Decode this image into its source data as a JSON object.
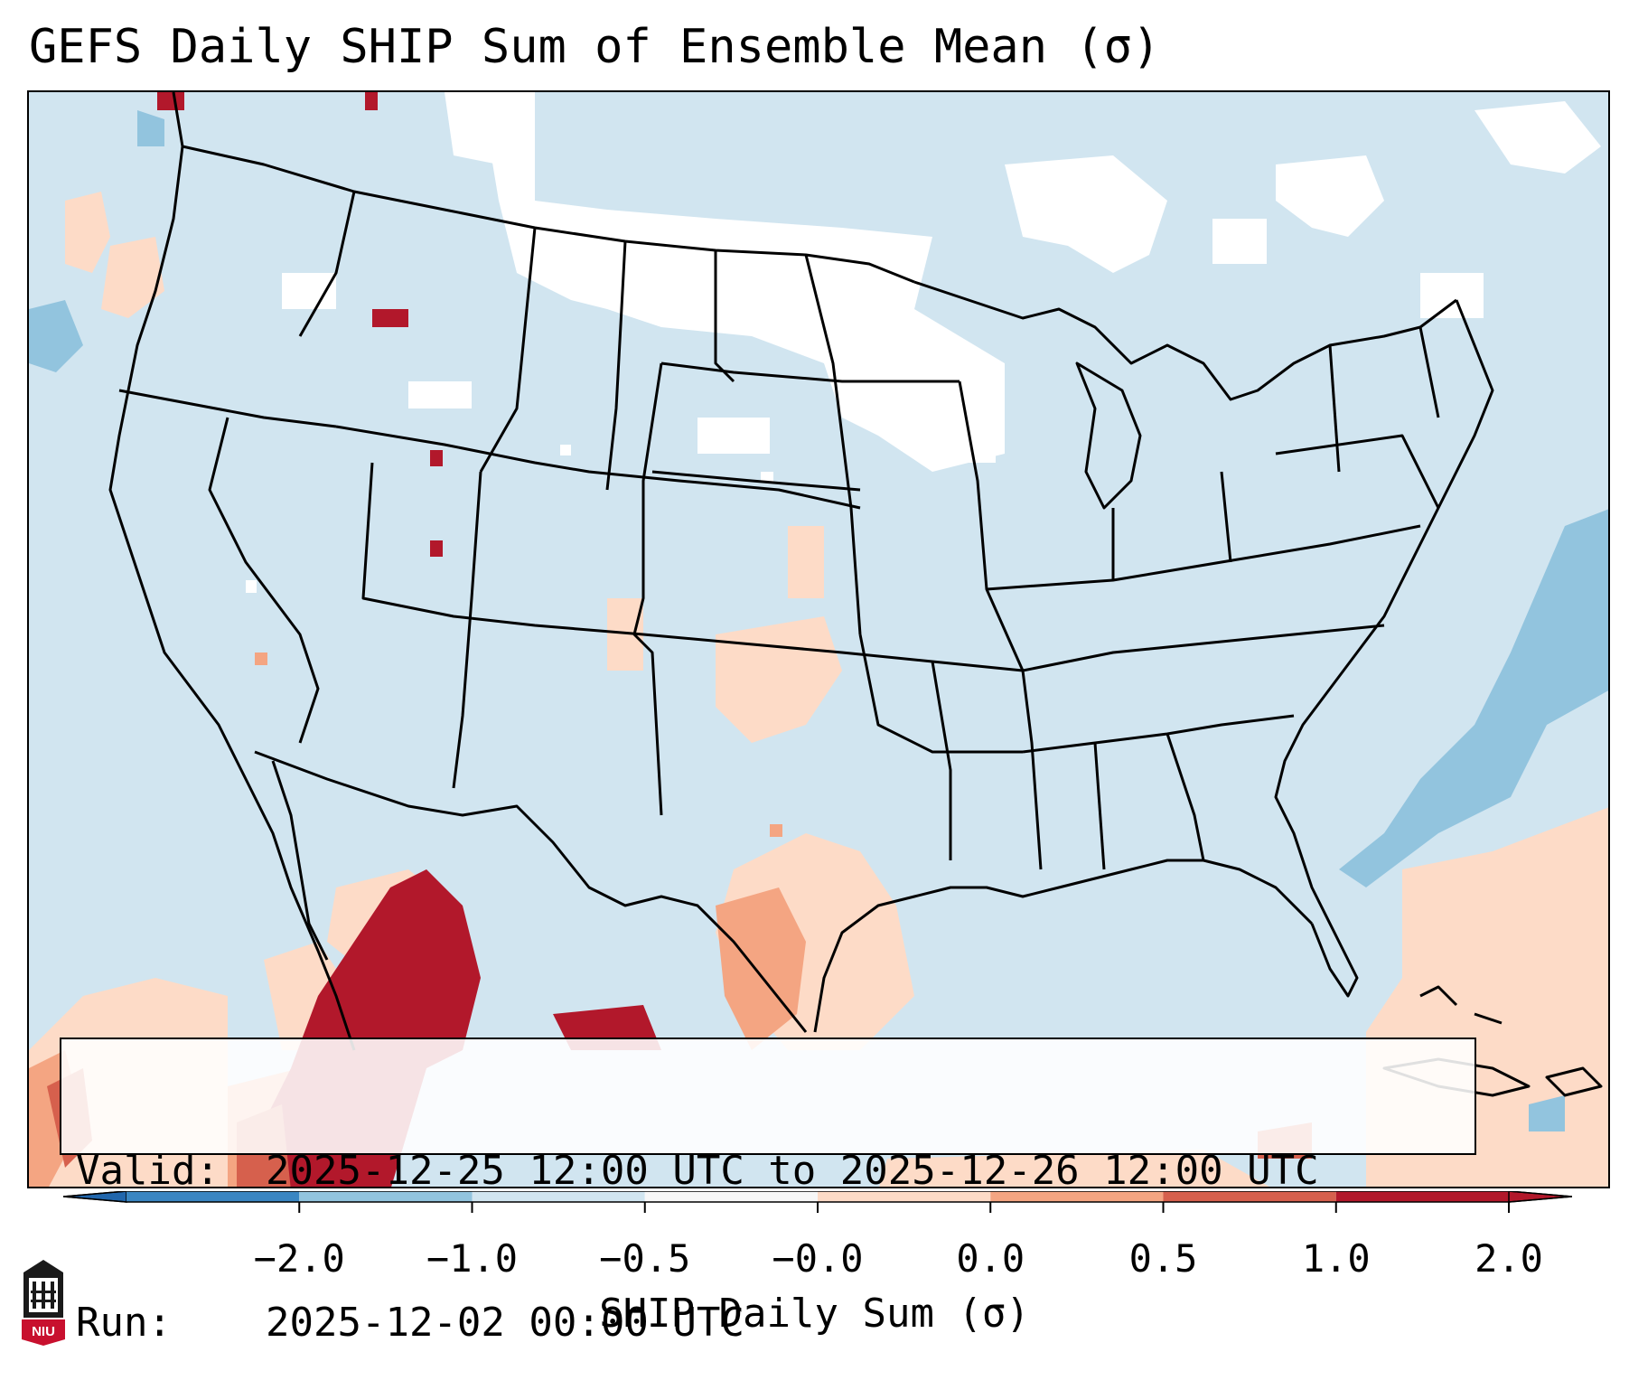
{
  "title": "GEFS Daily SHIP Sum of Ensemble Mean (σ)",
  "info": {
    "valid_label": "Valid:",
    "valid_value": "2025-12-25 12:00 UTC to 2025-12-26 12:00 UTC",
    "run_label": "Run:",
    "run_value": "2025-12-02 00:00 UTC"
  },
  "colorbar": {
    "label": "SHIP Daily Sum (σ)",
    "ticks": [
      "−2.0",
      "−1.0",
      "−0.5",
      "−0.0",
      "0.0",
      "0.5",
      "1.0",
      "2.0"
    ],
    "colors": [
      "#3a86c2",
      "#92c4de",
      "#d1e5f0",
      "#f7f7f7",
      "#fddbc7",
      "#f4a582",
      "#d6604d",
      "#b2182b"
    ],
    "extend_low_color": "#2166ac",
    "extend_high_color": "#b2182b"
  },
  "logo": {
    "text": "NIU",
    "icon": "university-logo-icon"
  },
  "map": {
    "background_color": "#d1e5f0",
    "land_color_light": "#d1e5f0",
    "white_color": "#ffffff",
    "coast_color": "#000000"
  }
}
